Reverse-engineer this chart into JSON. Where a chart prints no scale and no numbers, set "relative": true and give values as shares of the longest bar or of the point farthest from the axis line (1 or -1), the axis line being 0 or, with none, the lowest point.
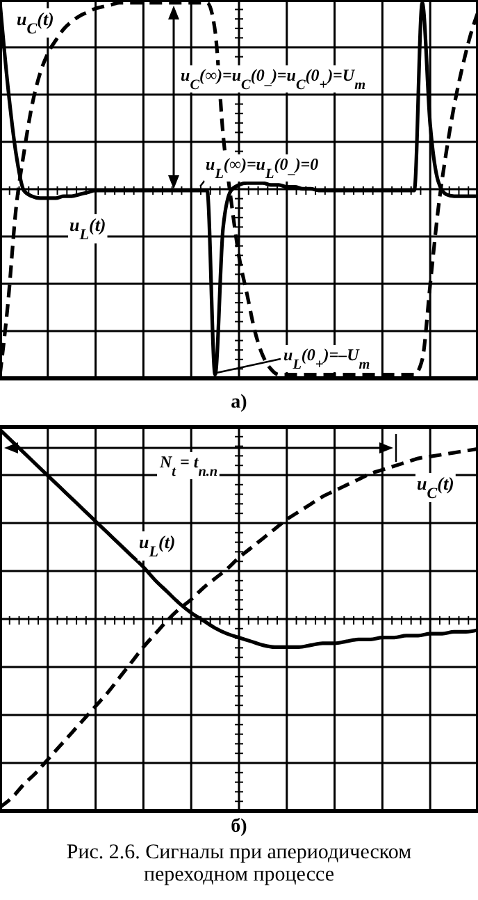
{
  "chart_data": [
    {
      "type": "line",
      "title": "а)",
      "relative": true,
      "grid": true,
      "categories": [
        null,
        null,
        null,
        null,
        null,
        null,
        null,
        null,
        null,
        null,
        null,
        null,
        null,
        null,
        null,
        null,
        null,
        null,
        null,
        null,
        null,
        null,
        null,
        null,
        null,
        null,
        null,
        null,
        null,
        null,
        null,
        null,
        null,
        null,
        null,
        null,
        null,
        null,
        null,
        null,
        null,
        null,
        null,
        null,
        null,
        null,
        null,
        null,
        null,
        null,
        null,
        null,
        null,
        null,
        null,
        null,
        null,
        null,
        null,
        null,
        null
      ],
      "series": [
        {
          "name": "u$_{C}$(t)",
          "color": "#000000",
          "line_style": "dashed",
          "values": [
            -0.98,
            -0.6,
            -0.1,
            0.2,
            0.45,
            0.62,
            0.73,
            0.8,
            0.86,
            0.9,
            0.93,
            0.95,
            0.97,
            0.98,
            0.99,
            1.0,
            1.0,
            1.0,
            1.0,
            1.0,
            1.0,
            1.0,
            1.0,
            1.0,
            1.0,
            1.0,
            1.0,
            0.85,
            0.3,
            -0.05,
            -0.35,
            -0.55,
            -0.75,
            -0.88,
            -0.95,
            -0.98,
            -0.98,
            -0.98,
            -0.98,
            -0.98,
            -0.98,
            -0.98,
            -0.98,
            -0.98,
            -0.98,
            -0.98,
            -0.98,
            -0.98,
            -0.98,
            -0.98,
            -0.98,
            -0.98,
            -0.98,
            -0.9,
            -0.5,
            -0.1,
            0.2,
            0.45,
            0.65,
            0.82,
            0.95
          ]
        },
        {
          "name": "u$_{L}$(t)",
          "color": "#000000",
          "line_style": "solid",
          "values": [
            1.0,
            0.55,
            0.2,
            0.0,
            -0.03,
            -0.04,
            -0.04,
            -0.04,
            -0.03,
            -0.03,
            -0.02,
            -0.01,
            0,
            0,
            0,
            0,
            0,
            0,
            0,
            0,
            0,
            0,
            0,
            0,
            0,
            0,
            0,
            -0.98,
            -0.2,
            0.0,
            0.03,
            0.04,
            0.04,
            0.04,
            0.03,
            0.03,
            0.02,
            0.02,
            0.01,
            0.01,
            0,
            0,
            0,
            0,
            0,
            0,
            0,
            0,
            0,
            0,
            0,
            0,
            0,
            1.0,
            0.35,
            0.05,
            -0.02,
            -0.03,
            -0.03,
            -0.03,
            -0.03
          ]
        }
      ],
      "annotations": [
        "u$_{C}$(∞)=u$_{C}$(0$_{–}$)=u$_{C}$(0$_{+}$)=U$_{m}$",
        "u$_{L}$(∞)=u$_{L}$(0$_{–}$)=0",
        "u$_{L}$(0$_{+}$)=–U$_{m}$"
      ]
    },
    {
      "type": "line",
      "title": "б)",
      "relative": true,
      "grid": true,
      "categories": [
        null,
        null,
        null,
        null,
        null,
        null,
        null,
        null,
        null,
        null,
        null,
        null,
        null,
        null,
        null,
        null,
        null,
        null,
        null,
        null,
        null,
        null,
        null,
        null,
        null,
        null,
        null,
        null,
        null,
        null,
        null,
        null,
        null,
        null,
        null,
        null,
        null,
        null,
        null,
        null,
        null
      ],
      "series": [
        {
          "name": "u$_{L}$(t)",
          "color": "#000000",
          "line_style": "solid",
          "values": [
            1.0,
            0.94,
            0.88,
            0.82,
            0.76,
            0.7,
            0.64,
            0.58,
            0.52,
            0.46,
            0.4,
            0.34,
            0.28,
            0.21,
            0.15,
            0.09,
            0.04,
            0.0,
            -0.04,
            -0.07,
            -0.09,
            -0.11,
            -0.13,
            -0.14,
            -0.14,
            -0.14,
            -0.13,
            -0.12,
            -0.12,
            -0.11,
            -0.1,
            -0.1,
            -0.09,
            -0.09,
            -0.08,
            -0.08,
            -0.07,
            -0.07,
            -0.06,
            -0.06,
            -0.05
          ]
        },
        {
          "name": "u$_{C}$(t)",
          "color": "#000000",
          "line_style": "dashed",
          "values": [
            -0.98,
            -0.93,
            -0.86,
            -0.8,
            -0.73,
            -0.66,
            -0.59,
            -0.52,
            -0.45,
            -0.38,
            -0.3,
            -0.22,
            -0.14,
            -0.07,
            0.0,
            0.06,
            0.11,
            0.17,
            0.22,
            0.27,
            0.33,
            0.38,
            0.43,
            0.48,
            0.53,
            0.57,
            0.61,
            0.65,
            0.68,
            0.71,
            0.74,
            0.77,
            0.79,
            0.81,
            0.83,
            0.85,
            0.86,
            0.87,
            0.88,
            0.89,
            0.9
          ]
        }
      ],
      "annotations": [
        "N$_{t}$ = t$_{п.п}$",
        "Рис. 2.6. Сигналы при апериодическом переходном процессе"
      ]
    }
  ]
}
